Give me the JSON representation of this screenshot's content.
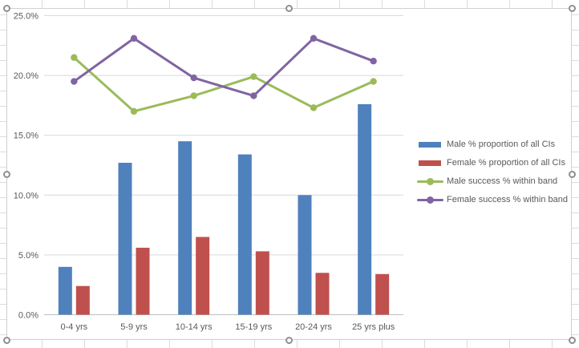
{
  "window": {
    "description": "Selected embedded spreadsheet chart object",
    "selected": true
  },
  "chart_data": {
    "type": "combo",
    "subtype": "clustered bars with two marker lines",
    "title": "",
    "xlabel": "",
    "ylabel": "",
    "categories": [
      "0-4 yrs",
      "5-9 yrs",
      "10-14 yrs",
      "15-19 yrs",
      "20-24 yrs",
      "25 yrs plus"
    ],
    "y_axis": {
      "min": 0,
      "max": 25,
      "step": 5,
      "unit": "%",
      "tick_labels": [
        "0.0%",
        "5.0%",
        "10.0%",
        "15.0%",
        "20.0%",
        "25.0%"
      ]
    },
    "grid": true,
    "legend_position": "right",
    "series": [
      {
        "name": "Male % proportion of all CIs",
        "type": "bar",
        "color": "#4F81BD",
        "values": [
          4.0,
          12.7,
          14.5,
          13.4,
          10.0,
          17.6
        ]
      },
      {
        "name": "Female % proportion of all CIs",
        "type": "bar",
        "color": "#C0504D",
        "values": [
          2.4,
          5.6,
          6.5,
          5.3,
          3.5,
          3.4
        ]
      },
      {
        "name": "Male success % within band",
        "type": "line",
        "color": "#9BBB59",
        "values": [
          21.5,
          17.0,
          18.3,
          19.9,
          17.3,
          19.5
        ]
      },
      {
        "name": "Female success % within band",
        "type": "line",
        "color": "#8064A2",
        "values": [
          19.5,
          23.1,
          19.8,
          18.3,
          23.1,
          21.2
        ]
      }
    ]
  },
  "colors": {
    "axis_text": "#595959",
    "gridline": "#D9D9D9",
    "axis_line": "#BFBFBF",
    "chart_border": "#D0D0D0",
    "sheet_gridline": "#DCDCDC",
    "handle_border": "#8F8F8F"
  }
}
